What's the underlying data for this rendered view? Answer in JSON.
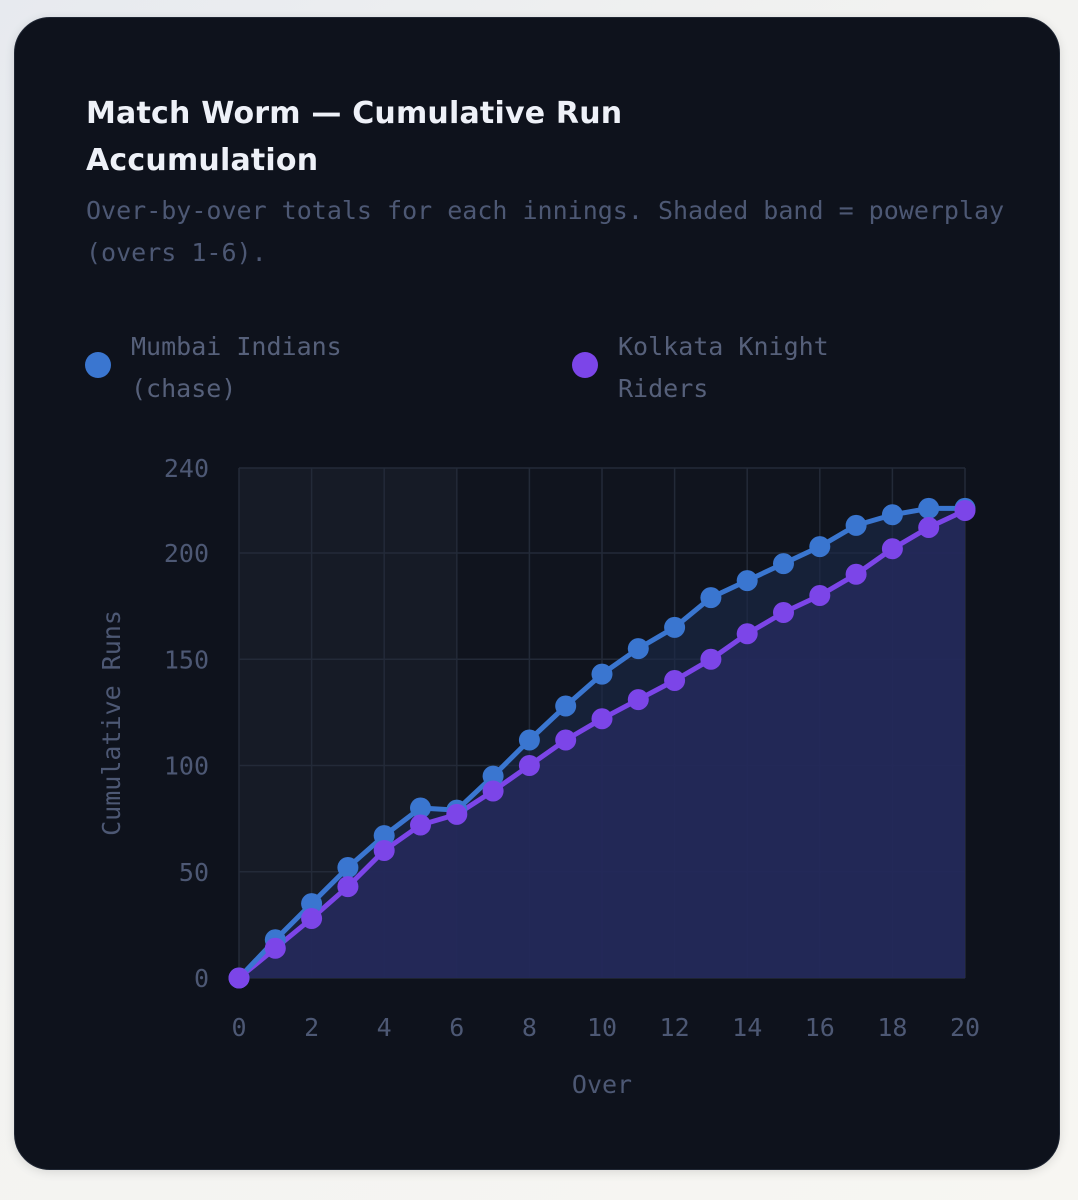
{
  "card": {
    "title": "Match Worm — Cumulative Run Accumulation",
    "subtitle": "Over-by-over totals for each innings. Shaded band = powerplay (overs 1-6)."
  },
  "colors": {
    "background": "#0e121c",
    "mi": "#3a76d0",
    "kkr": "#7c45e8",
    "fill": "#24295a",
    "grid": "#232a38",
    "powerplay": "#161b26"
  },
  "chart_data": {
    "type": "line",
    "title": "Match Worm — Cumulative Run Accumulation",
    "subtitle": "Over-by-over totals for each innings. Shaded band = powerplay (overs 1-6).",
    "xlabel": "Over",
    "ylabel": "Cumulative Runs",
    "xlim": [
      0,
      20
    ],
    "ylim": [
      0,
      240
    ],
    "x_ticks": [
      0,
      2,
      4,
      6,
      8,
      10,
      12,
      14,
      16,
      18,
      20
    ],
    "y_ticks": [
      0,
      50,
      100,
      150,
      200,
      240
    ],
    "grid": true,
    "legend_position": "top",
    "powerplay_band": [
      0,
      6
    ],
    "x": [
      0,
      1,
      2,
      3,
      4,
      5,
      6,
      7,
      8,
      9,
      10,
      11,
      12,
      13,
      14,
      15,
      16,
      17,
      18,
      19,
      20
    ],
    "series": [
      {
        "name": "Mumbai Indians (chase)",
        "color": "#3a76d0",
        "values": [
          0,
          18,
          35,
          52,
          67,
          80,
          79,
          95,
          112,
          128,
          143,
          155,
          165,
          179,
          187,
          195,
          203,
          213,
          218,
          221,
          221
        ]
      },
      {
        "name": "Kolkata Knight Riders",
        "color": "#7c45e8",
        "values": [
          0,
          14,
          28,
          43,
          60,
          72,
          77,
          88,
          100,
          112,
          122,
          131,
          140,
          150,
          162,
          172,
          180,
          190,
          202,
          212,
          220
        ]
      }
    ]
  }
}
